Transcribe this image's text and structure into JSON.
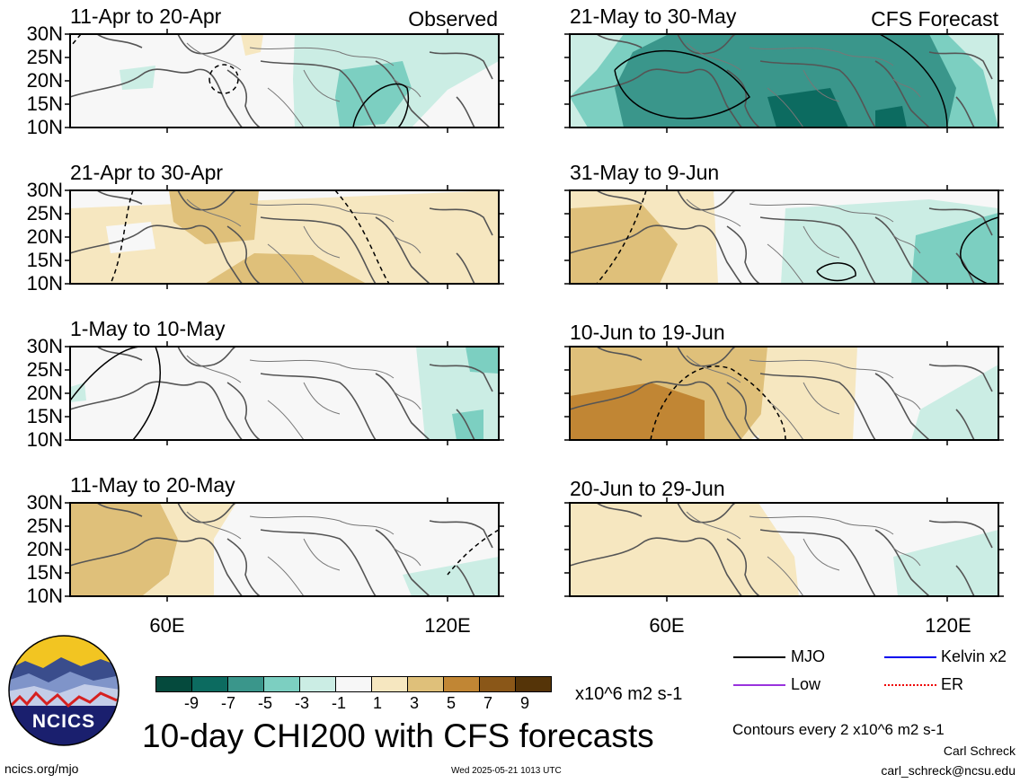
{
  "title": "10-day CHI200 with CFS forecasts",
  "observed_label": "Observed",
  "forecast_label": "CFS Forecast",
  "panels": {
    "left": [
      "11-Apr to 20-Apr",
      "21-Apr to 30-Apr",
      "1-May to 10-May",
      "11-May to 20-May"
    ],
    "right": [
      "21-May to 30-May",
      "31-May to 9-Jun",
      "10-Jun to 19-Jun",
      "20-Jun to 29-Jun"
    ]
  },
  "lat_ticks": [
    "30N",
    "25N",
    "20N",
    "15N",
    "10N"
  ],
  "lon_ticks": [
    "60E",
    "120E"
  ],
  "colorbar": {
    "ticks": [
      "-9",
      "-7",
      "-5",
      "-3",
      "-1",
      "1",
      "3",
      "5",
      "7",
      "9"
    ],
    "colors": [
      "#054a3d",
      "#0c6b60",
      "#3a968b",
      "#7ccfc1",
      "#cbede4",
      "#f7f7f7",
      "#f6e7c0",
      "#dfc07a",
      "#c18634",
      "#8a5718",
      "#553408"
    ],
    "units": "x10^6 m2 s-1"
  },
  "legend": {
    "items": [
      {
        "label": "MJO",
        "color": "#000000"
      },
      {
        "label": "Kelvin x2",
        "color": "#0000ee"
      },
      {
        "label": "Low",
        "color": "#9933dd"
      },
      {
        "label": "ER",
        "color": "#ee0000"
      }
    ],
    "contours_note": "Contours every 2 x10^6 m2 s-1"
  },
  "credits": {
    "logo_text": "NCICS",
    "site": "ncics.org/mjo",
    "timestamp": "Wed 2025-05-21 1013 UTC",
    "author": "Carl Schreck",
    "email": "carl_schreck@ncsu.edu"
  }
}
